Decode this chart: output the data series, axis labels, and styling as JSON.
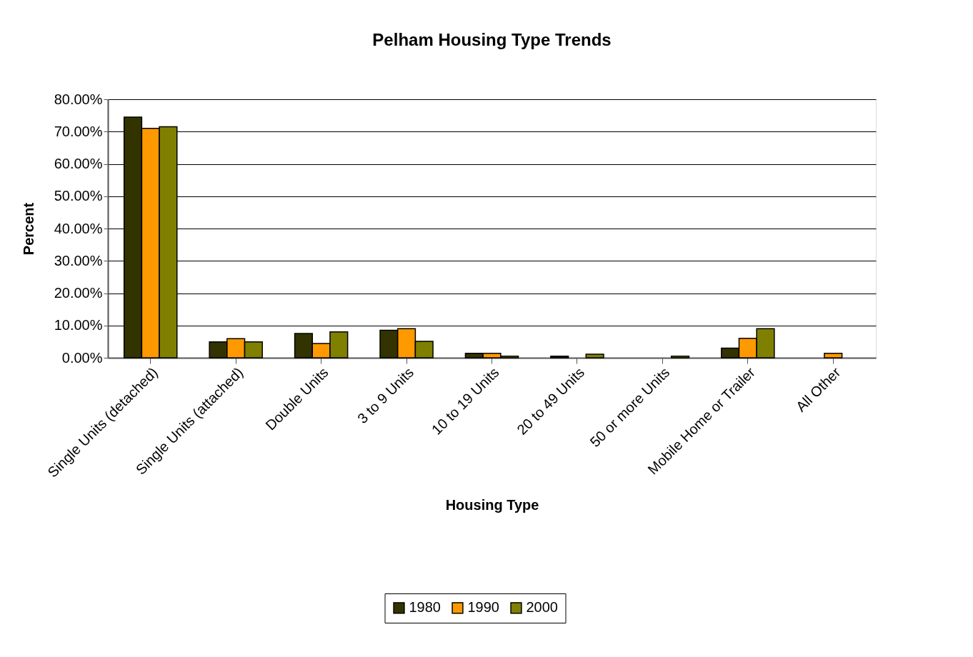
{
  "chart_data": {
    "type": "bar",
    "title": "Pelham Housing Type Trends",
    "xlabel": "Housing Type",
    "ylabel": "Percent",
    "categories": [
      "Single Units (detached)",
      "Single Units (attached)",
      "Double Units",
      "3 to 9 Units",
      "10 to 19 Units",
      "20 to 49 Units",
      "50 or more Units",
      "Mobile Home or Trailer",
      "All Other"
    ],
    "series": [
      {
        "name": "1980",
        "color": "#333300",
        "values": [
          74.5,
          4.9,
          7.5,
          8.5,
          1.4,
          0.5,
          null,
          3.0,
          null
        ]
      },
      {
        "name": "1990",
        "color": "#ff9900",
        "values": [
          71.0,
          5.9,
          4.4,
          9.0,
          1.4,
          null,
          null,
          6.0,
          1.4
        ]
      },
      {
        "name": "2000",
        "color": "#808000",
        "values": [
          71.5,
          4.9,
          8.0,
          5.1,
          0.5,
          1.1,
          0.5,
          9.0,
          null
        ]
      }
    ],
    "ylim": [
      0,
      80
    ],
    "yticks": [
      {
        "value": 0,
        "label": "0.00%"
      },
      {
        "value": 10,
        "label": "10.00%"
      },
      {
        "value": 20,
        "label": "20.00%"
      },
      {
        "value": 30,
        "label": "30.00%"
      },
      {
        "value": 40,
        "label": "40.00%"
      },
      {
        "value": 50,
        "label": "50.00%"
      },
      {
        "value": 60,
        "label": "60.00%"
      },
      {
        "value": 70,
        "label": "70.00%"
      },
      {
        "value": 80,
        "label": "80.00%"
      }
    ],
    "grid": "y",
    "legend": "bottom"
  }
}
